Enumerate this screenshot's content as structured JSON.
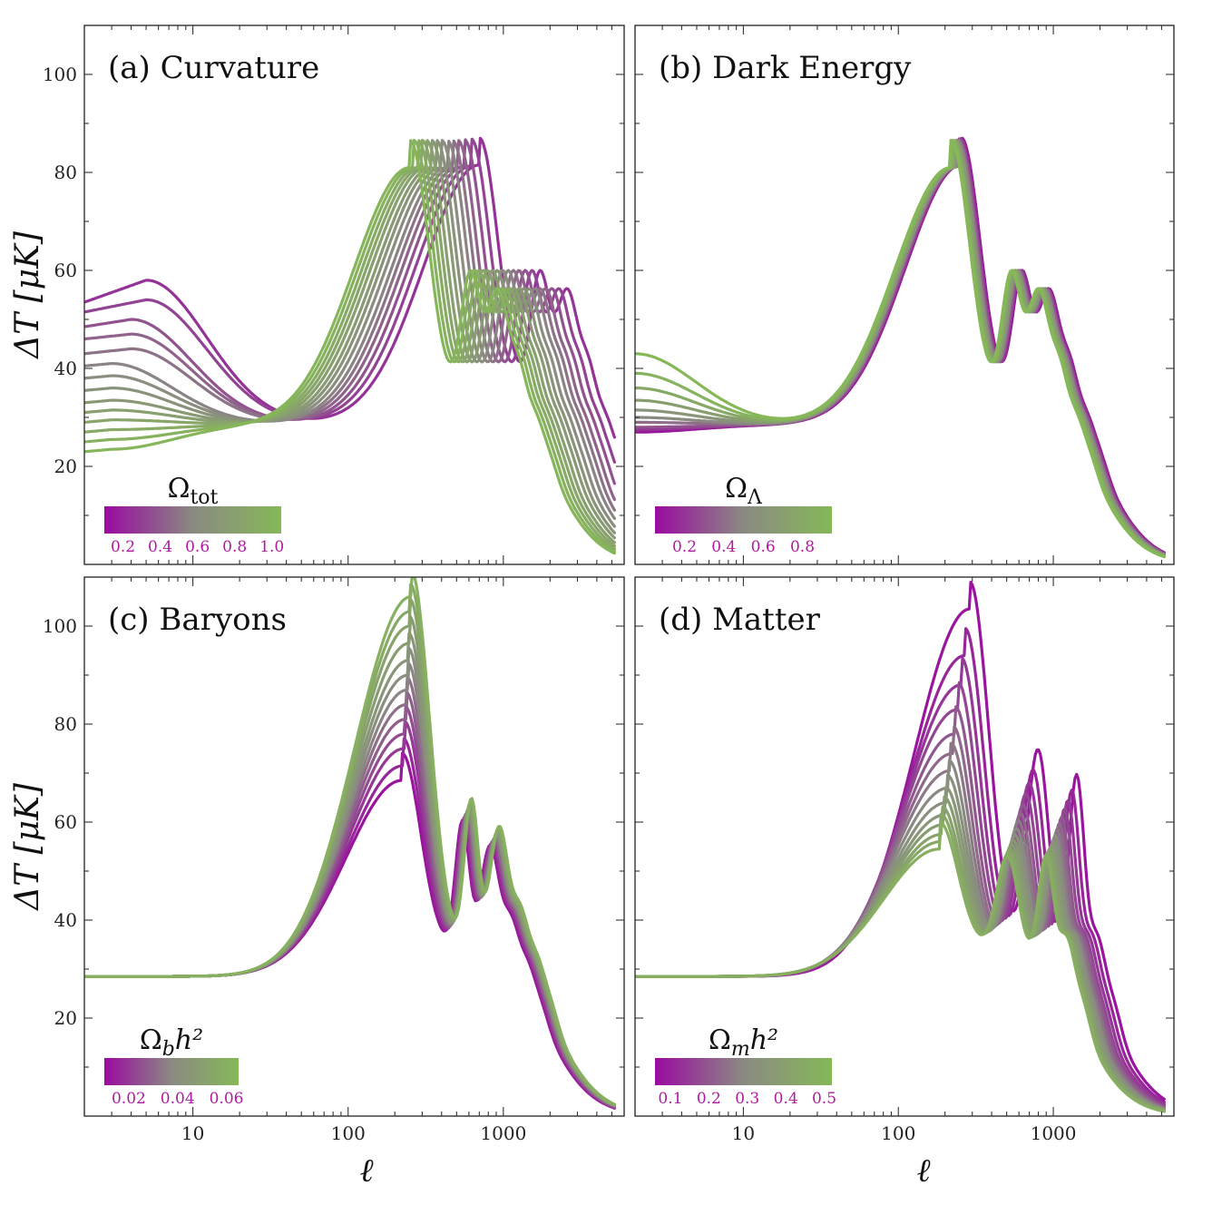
{
  "colors": {
    "low": "#9a0aa0",
    "mid": "#8a8a82",
    "high": "#86b858"
  },
  "axes": {
    "xlabel": "ℓ",
    "ylabel": "ΔT [μK]"
  },
  "chart_data": [
    {
      "id": "a",
      "type": "line",
      "title": "(a) Curvature",
      "colorbar": {
        "label": "Ω",
        "label_sub": "tot",
        "label_tail": "",
        "ticks": [
          "0.2",
          "0.4",
          "0.6",
          "0.8",
          "1.0"
        ],
        "range": [
          0.1,
          1.05
        ]
      },
      "x_scale": "log",
      "xlim": [
        2,
        6000
      ],
      "ylim": [
        0,
        110
      ],
      "yticks": [
        20,
        40,
        60,
        80,
        100
      ],
      "xticks": [
        10,
        100,
        1000
      ],
      "series": [
        {
          "param": 0.25,
          "lowl_start": 53.5,
          "lowl_peak": 58,
          "lowl_peak_l": 5,
          "peak_l": 700,
          "peak_h": 81.5
        },
        {
          "param": 0.31,
          "lowl_start": 51.5,
          "lowl_peak": 54,
          "lowl_peak_l": 5,
          "peak_l": 620,
          "peak_h": 81.3
        },
        {
          "param": 0.37,
          "lowl_start": 48.5,
          "lowl_peak": 50,
          "lowl_peak_l": 4,
          "peak_l": 560,
          "peak_h": 81.2
        },
        {
          "param": 0.43,
          "lowl_start": 46.0,
          "lowl_peak": 47,
          "lowl_peak_l": 4,
          "peak_l": 510,
          "peak_h": 81.0
        },
        {
          "param": 0.49,
          "lowl_start": 43.0,
          "lowl_peak": 44,
          "lowl_peak_l": 4,
          "peak_l": 470,
          "peak_h": 81.0
        },
        {
          "param": 0.55,
          "lowl_start": 40.5,
          "lowl_peak": 41,
          "lowl_peak_l": 3,
          "peak_l": 435,
          "peak_h": 81.0
        },
        {
          "param": 0.61,
          "lowl_start": 38.0,
          "lowl_peak": 38.5,
          "lowl_peak_l": 3,
          "peak_l": 400,
          "peak_h": 81.0
        },
        {
          "param": 0.67,
          "lowl_start": 35.5,
          "lowl_peak": 36,
          "lowl_peak_l": 3,
          "peak_l": 370,
          "peak_h": 81.0
        },
        {
          "param": 0.73,
          "lowl_start": 33.0,
          "lowl_peak": 33.5,
          "lowl_peak_l": 3,
          "peak_l": 345,
          "peak_h": 81.0
        },
        {
          "param": 0.79,
          "lowl_start": 31.0,
          "lowl_peak": 31.5,
          "lowl_peak_l": 3,
          "peak_l": 320,
          "peak_h": 81.0
        },
        {
          "param": 0.85,
          "lowl_start": 29.0,
          "lowl_peak": 29.5,
          "lowl_peak_l": 3,
          "peak_l": 300,
          "peak_h": 81.0
        },
        {
          "param": 0.91,
          "lowl_start": 27.0,
          "lowl_peak": 27.5,
          "lowl_peak_l": 3,
          "peak_l": 282,
          "peak_h": 81.0
        },
        {
          "param": 0.97,
          "lowl_start": 25.0,
          "lowl_peak": 25.5,
          "lowl_peak_l": 3,
          "peak_l": 265,
          "peak_h": 81.0
        },
        {
          "param": 1.03,
          "lowl_start": 23.0,
          "lowl_peak": 23.5,
          "lowl_peak_l": 3,
          "peak_l": 250,
          "peak_h": 81.0
        }
      ]
    },
    {
      "id": "b",
      "type": "line",
      "title": "(b) Dark Energy",
      "colorbar": {
        "label": "Ω",
        "label_sub": "Λ",
        "label_tail": "",
        "ticks": [
          "0.2",
          "0.4",
          "0.6",
          "0.8"
        ],
        "range": [
          0.05,
          0.95
        ]
      },
      "x_scale": "log",
      "xlim": [
        2,
        6000
      ],
      "ylim": [
        0,
        110
      ],
      "yticks": [
        20,
        40,
        60,
        80,
        100
      ],
      "xticks": [
        10,
        100,
        1000
      ],
      "series": [
        {
          "param": 0.1,
          "lowl_start": 27.0,
          "peak_l": 255,
          "peak_h": 81.5
        },
        {
          "param": 0.2,
          "lowl_start": 27.5,
          "peak_l": 250,
          "peak_h": 81.4
        },
        {
          "param": 0.3,
          "lowl_start": 28.0,
          "peak_l": 246,
          "peak_h": 81.3
        },
        {
          "param": 0.4,
          "lowl_start": 29.0,
          "peak_l": 242,
          "peak_h": 81.2
        },
        {
          "param": 0.5,
          "lowl_start": 30.0,
          "peak_l": 238,
          "peak_h": 81.1
        },
        {
          "param": 0.6,
          "lowl_start": 31.5,
          "peak_l": 234,
          "peak_h": 81.0
        },
        {
          "param": 0.7,
          "lowl_start": 33.5,
          "peak_l": 230,
          "peak_h": 81.0
        },
        {
          "param": 0.8,
          "lowl_start": 36.0,
          "peak_l": 226,
          "peak_h": 81.0
        },
        {
          "param": 0.9,
          "lowl_start": 39.0,
          "peak_l": 222,
          "peak_h": 81.0
        },
        {
          "param": 0.95,
          "lowl_start": 43.0,
          "peak_l": 218,
          "peak_h": 81.0
        }
      ]
    },
    {
      "id": "c",
      "type": "line",
      "title": "(c) Baryons",
      "colorbar": {
        "label": "Ω",
        "label_sub": "b",
        "label_tail": "h²",
        "ticks": [
          "0.02",
          "0.04",
          "0.06"
        ],
        "range": [
          0.01,
          0.065
        ]
      },
      "x_scale": "log",
      "xlim": [
        2,
        6000
      ],
      "ylim": [
        0,
        110
      ],
      "yticks": [
        20,
        40,
        60,
        80,
        100
      ],
      "xticks": [
        10,
        100,
        1000
      ],
      "series": [
        {
          "param": 0.012,
          "peak_l": 222,
          "peak_h": 68.5
        },
        {
          "param": 0.016,
          "peak_l": 226,
          "peak_h": 71.5
        },
        {
          "param": 0.02,
          "peak_l": 230,
          "peak_h": 75.0
        },
        {
          "param": 0.024,
          "peak_l": 233,
          "peak_h": 78.0
        },
        {
          "param": 0.028,
          "peak_l": 236,
          "peak_h": 81.0
        },
        {
          "param": 0.032,
          "peak_l": 239,
          "peak_h": 84.0
        },
        {
          "param": 0.036,
          "peak_l": 242,
          "peak_h": 87.0
        },
        {
          "param": 0.04,
          "peak_l": 244,
          "peak_h": 90.0
        },
        {
          "param": 0.044,
          "peak_l": 246,
          "peak_h": 93.0
        },
        {
          "param": 0.048,
          "peak_l": 248,
          "peak_h": 96.5
        },
        {
          "param": 0.052,
          "peak_l": 250,
          "peak_h": 100.0
        },
        {
          "param": 0.056,
          "peak_l": 252,
          "peak_h": 103.0
        },
        {
          "param": 0.06,
          "peak_l": 254,
          "peak_h": 106.0
        }
      ]
    },
    {
      "id": "d",
      "type": "line",
      "title": "(d) Matter",
      "colorbar": {
        "label": "Ω",
        "label_sub": "m",
        "label_tail": "h²",
        "ticks": [
          "0.1",
          "0.2",
          "0.3",
          "0.4",
          "0.5"
        ],
        "range": [
          0.06,
          0.52
        ]
      },
      "x_scale": "log",
      "xlim": [
        2,
        6000
      ],
      "ylim": [
        0,
        110
      ],
      "yticks": [
        20,
        40,
        60,
        80,
        100
      ],
      "xticks": [
        10,
        100,
        1000
      ],
      "series": [
        {
          "param": 0.08,
          "peak_l": 290,
          "peak_h": 103.5
        },
        {
          "param": 0.11,
          "peak_l": 270,
          "peak_h": 94.0
        },
        {
          "param": 0.14,
          "peak_l": 255,
          "peak_h": 88.0
        },
        {
          "param": 0.17,
          "peak_l": 243,
          "peak_h": 83.0
        },
        {
          "param": 0.2,
          "peak_l": 233,
          "peak_h": 78.0
        },
        {
          "param": 0.23,
          "peak_l": 225,
          "peak_h": 74.0
        },
        {
          "param": 0.26,
          "peak_l": 218,
          "peak_h": 70.5
        },
        {
          "param": 0.29,
          "peak_l": 212,
          "peak_h": 67.0
        },
        {
          "param": 0.32,
          "peak_l": 207,
          "peak_h": 64.0
        },
        {
          "param": 0.35,
          "peak_l": 202,
          "peak_h": 61.5
        },
        {
          "param": 0.38,
          "peak_l": 197,
          "peak_h": 59.5
        },
        {
          "param": 0.41,
          "peak_l": 192,
          "peak_h": 57.5
        },
        {
          "param": 0.44,
          "peak_l": 188,
          "peak_h": 56.0
        },
        {
          "param": 0.47,
          "peak_l": 184,
          "peak_h": 54.5
        }
      ]
    }
  ]
}
